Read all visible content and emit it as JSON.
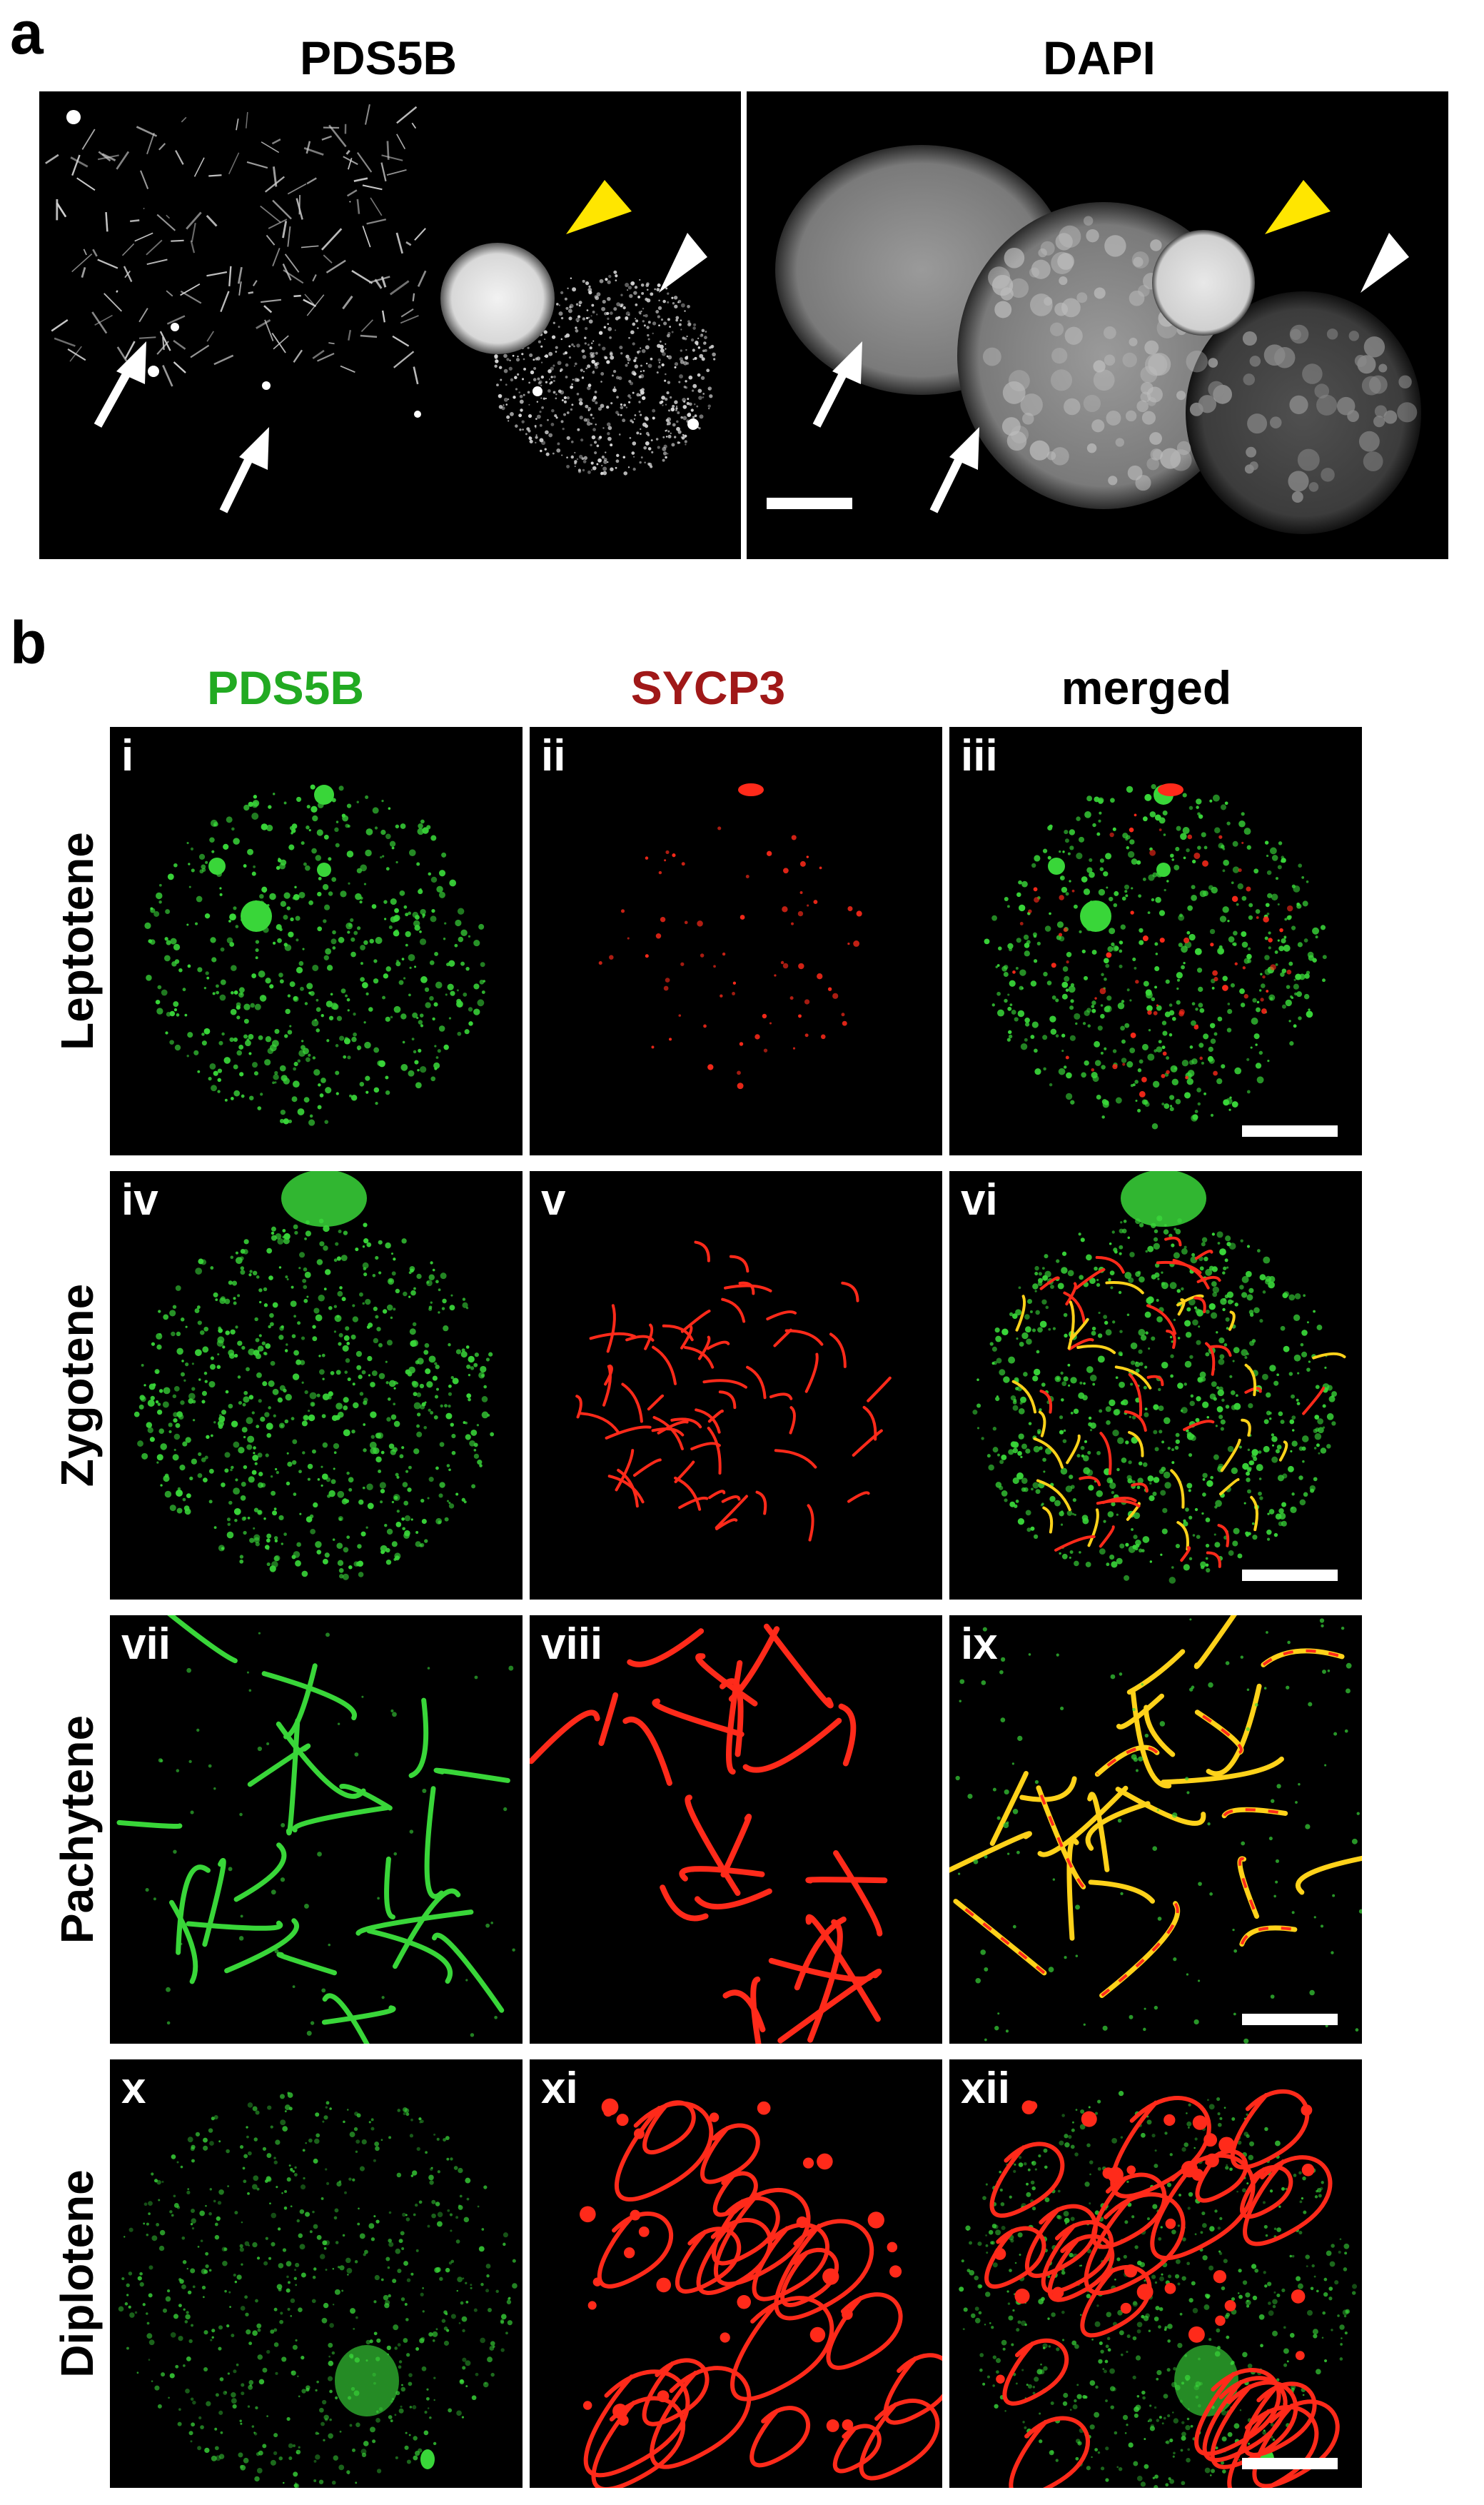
{
  "figure": {
    "panel_a": {
      "letter": "a",
      "left_title": "PDS5B",
      "right_title": "DAPI"
    },
    "panel_b": {
      "letter": "b",
      "columns": [
        {
          "label": "PDS5B",
          "color": "#22aa22"
        },
        {
          "label": "SYCP3",
          "color": "#a01818"
        },
        {
          "label": "merged",
          "color": "#000000"
        }
      ],
      "rows": [
        {
          "stage": "Leptotene",
          "subpanels": [
            "i",
            "ii",
            "iii"
          ]
        },
        {
          "stage": "Zygotene",
          "subpanels": [
            "iv",
            "v",
            "vi"
          ]
        },
        {
          "stage": "Pachytene",
          "subpanels": [
            "vii",
            "viii",
            "ix"
          ]
        },
        {
          "stage": "Diplotene",
          "subpanels": [
            "x",
            "xi",
            "xii"
          ]
        }
      ]
    },
    "colors": {
      "pds5b_green": "#39d639",
      "sycp3_red": "#ff2a1a",
      "merged_yellow": "#ffd21a",
      "arrowhead_yellow": "#ffe600",
      "arrowhead_white": "#ffffff"
    }
  }
}
